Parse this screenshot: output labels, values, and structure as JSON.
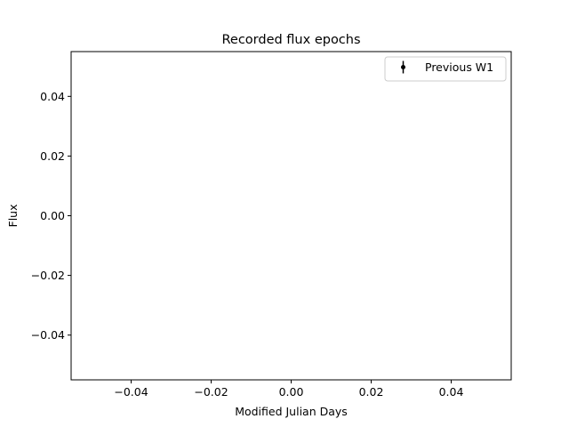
{
  "chart_data": {
    "type": "scatter",
    "title": "Recorded flux epochs",
    "xlabel": "Modified Julian Days",
    "ylabel": "Flux",
    "xlim": [
      -0.055,
      0.055
    ],
    "ylim": [
      -0.055,
      0.055
    ],
    "xticks": [
      -0.04,
      -0.02,
      0.0,
      0.02,
      0.04
    ],
    "xtick_labels": [
      "−0.04",
      "−0.02",
      "0.00",
      "0.02",
      "0.04"
    ],
    "yticks": [
      -0.04,
      -0.02,
      0.0,
      0.02,
      0.04
    ],
    "ytick_labels": [
      "−0.04",
      "−0.02",
      "0.00",
      "0.02",
      "0.04"
    ],
    "grid": false,
    "legend_position": "top-right",
    "series": [
      {
        "name": "Previous W1",
        "marker": "errorbar-point",
        "color": "#000000",
        "x": [],
        "y": [],
        "yerr": []
      }
    ]
  }
}
